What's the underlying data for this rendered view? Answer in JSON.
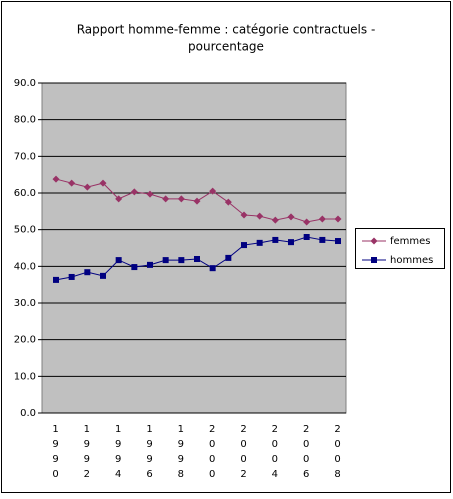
{
  "chart_data": {
    "type": "line",
    "title": [
      "Rapport homme-femme  : catégorie contractuels -",
      "pourcentage"
    ],
    "categories": [
      "1990",
      null,
      "1992",
      null,
      "1994",
      null,
      "1996",
      null,
      "1998",
      null,
      "2000",
      null,
      "2002",
      null,
      "2004",
      null,
      "2006",
      null,
      "2008"
    ],
    "series": [
      {
        "name": "femmes",
        "color": "#993366",
        "marker": "diamond",
        "values": [
          63.8,
          62.7,
          61.6,
          62.7,
          58.4,
          60.3,
          59.7,
          58.4,
          58.4,
          57.8,
          60.5,
          57.5,
          54.0,
          53.7,
          52.6,
          53.5,
          52.1,
          52.9,
          52.9
        ]
      },
      {
        "name": "hommes",
        "color": "#000080",
        "marker": "square",
        "values": [
          36.3,
          37.1,
          38.4,
          37.4,
          41.7,
          39.8,
          40.4,
          41.7,
          41.7,
          42.0,
          39.5,
          42.3,
          45.8,
          46.4,
          47.2,
          46.6,
          48.0,
          47.2,
          46.9
        ]
      }
    ],
    "ylim": [
      0,
      90
    ],
    "yticks": [
      {
        "value": 0,
        "label": "0.0"
      },
      {
        "value": 10,
        "label": "10.0"
      },
      {
        "value": 20,
        "label": "20.0"
      },
      {
        "value": 30,
        "label": "30.0"
      },
      {
        "value": 40,
        "label": "40.0"
      },
      {
        "value": 50,
        "label": "50.0"
      },
      {
        "value": 60,
        "label": "60.0"
      },
      {
        "value": 70,
        "label": "70.0"
      },
      {
        "value": 80,
        "label": "80.0"
      },
      {
        "value": 90,
        "label": "90.0"
      }
    ],
    "grid": true,
    "plot_background": "#c0c0c0",
    "legend": "right"
  }
}
